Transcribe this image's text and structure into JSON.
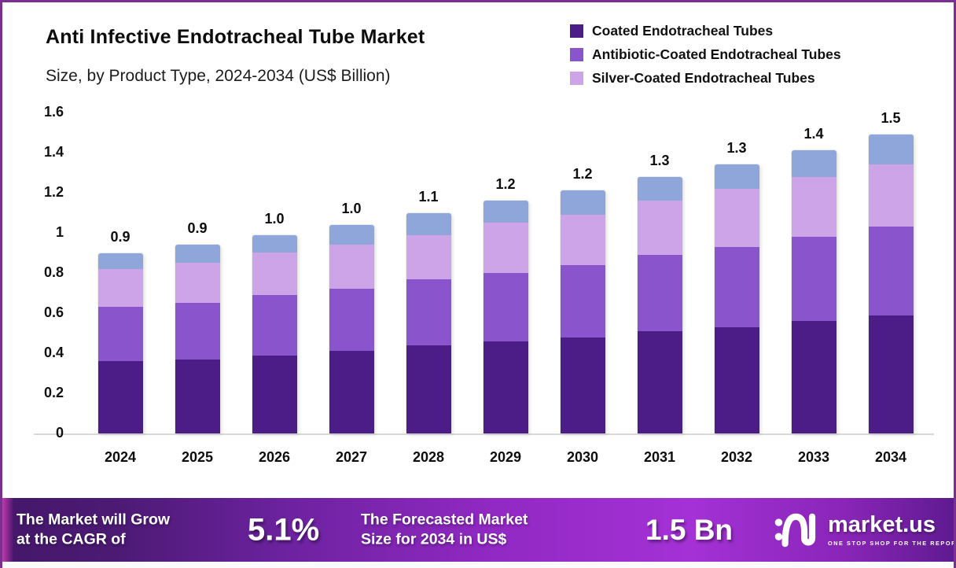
{
  "header": {
    "title": "Anti Infective Endotracheal Tube Market",
    "subtitle": "Size, by Product Type, 2024-2034 (US$ Billion)"
  },
  "chart_data": {
    "type": "bar",
    "stacked": true,
    "title": "Anti Infective Endotracheal Tube Market Size, by Product Type, 2024-2034 (US$ Billion)",
    "xlabel": "",
    "ylabel": "",
    "ylim": [
      0,
      1.6
    ],
    "grid": false,
    "legend_position": "top-right",
    "categories": [
      "2024",
      "2025",
      "2026",
      "2027",
      "2028",
      "2029",
      "2030",
      "2031",
      "2032",
      "2033",
      "2034"
    ],
    "series": [
      {
        "name": "Coated Endotracheal Tubes",
        "color": "#4c1d87",
        "in_legend": true,
        "values": [
          0.36,
          0.37,
          0.39,
          0.41,
          0.44,
          0.46,
          0.48,
          0.51,
          0.53,
          0.56,
          0.59
        ]
      },
      {
        "name": "Antibiotic-Coated Endotracheal Tubes",
        "color": "#8a55cc",
        "in_legend": true,
        "values": [
          0.27,
          0.28,
          0.3,
          0.31,
          0.33,
          0.34,
          0.36,
          0.38,
          0.4,
          0.42,
          0.44
        ]
      },
      {
        "name": "Silver-Coated Endotracheal Tubes",
        "color": "#cda4e8",
        "in_legend": true,
        "values": [
          0.19,
          0.2,
          0.21,
          0.22,
          0.22,
          0.25,
          0.25,
          0.27,
          0.29,
          0.3,
          0.31
        ]
      },
      {
        "name": "(unlabeled top segment)",
        "color": "#8ea6d9",
        "in_legend": false,
        "values": [
          0.08,
          0.09,
          0.09,
          0.1,
          0.11,
          0.11,
          0.12,
          0.12,
          0.12,
          0.13,
          0.15
        ]
      }
    ],
    "bar_total_labels": [
      "0.9",
      "0.9",
      "1.0",
      "1.0",
      "1.1",
      "1.2",
      "1.2",
      "1.3",
      "1.3",
      "1.4",
      "1.5"
    ],
    "ytick_labels": [
      "0",
      "0.2",
      "0.4",
      "0.6",
      "0.8",
      "1",
      "1.2",
      "1.4",
      "1.6"
    ],
    "ytick_values": [
      0,
      0.2,
      0.4,
      0.6,
      0.8,
      1.0,
      1.2,
      1.4,
      1.6
    ]
  },
  "banner": {
    "cagr_label_line1": "The Market will Grow",
    "cagr_label_line2": "at the CAGR of",
    "cagr_value": "5.1%",
    "forecast_label_line1": "The Forecasted Market",
    "forecast_label_line2": "Size for 2034 in US$",
    "forecast_value": "1.5 Bn",
    "logo_text": "market.us",
    "logo_tagline": "ONE STOP SHOP FOR THE REPORTS"
  },
  "colors": {
    "frame_border": "#7b2f8e",
    "axis_line": "#d9d9d9",
    "banner_dark": "#45186b",
    "banner_bright": "#a431d6"
  }
}
